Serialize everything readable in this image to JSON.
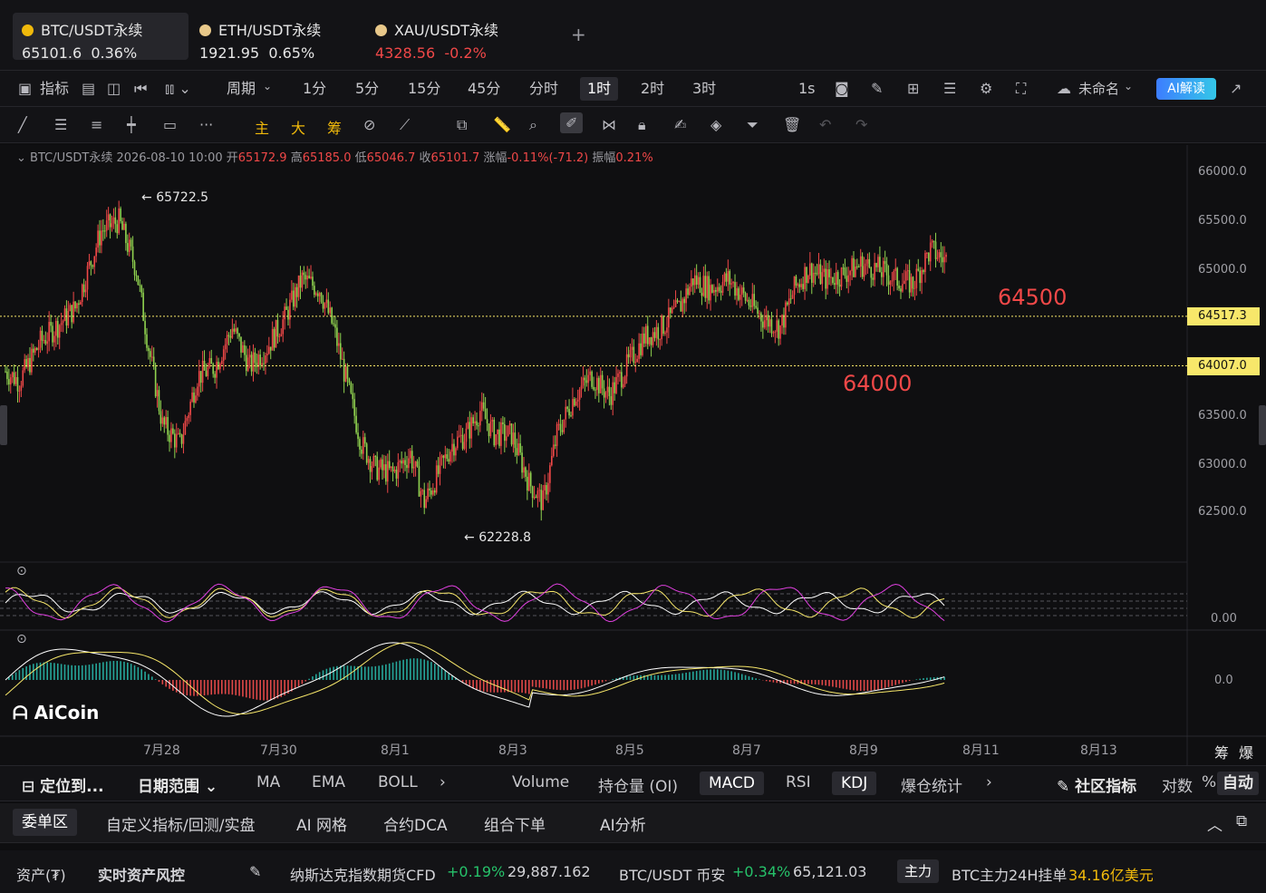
{
  "tabs": [
    {
      "name": "BTC/USDT永续",
      "price": "65101.6",
      "change": "0.36%",
      "dir": "up"
    },
    {
      "name": "ETH/USDT永续",
      "price": "1921.95",
      "change": "0.65%",
      "dir": "up"
    },
    {
      "name": "XAU/USDT永续",
      "price": "4328.56",
      "change": "-0.2%",
      "dir": "down"
    }
  ],
  "toolbar": {
    "indicator": "指标",
    "period": "周期",
    "intervals": [
      "1分",
      "5分",
      "15分",
      "45分",
      "分时",
      "1时",
      "2时",
      "3时"
    ],
    "selected_interval": "1时",
    "second": "1s",
    "layout_name": "未命名",
    "ai_button": "AI解读"
  },
  "draw_tools": {
    "main": "主",
    "big": "大",
    "chip": "筹"
  },
  "ohlc": {
    "symbol": "BTC/USDT永续",
    "datetime": "2026-08-10 10:00",
    "open_label": "开",
    "open": "65172.9",
    "high_label": "高",
    "high": "65185.0",
    "low_label": "低",
    "low": "65046.7",
    "close_label": "收",
    "close": "65101.7",
    "change_label": "涨幅",
    "change": "-0.11%(-71.2)",
    "amp_label": "振幅",
    "amp": "0.21%"
  },
  "chart_data": {
    "type": "candlestick",
    "y_ticks": [
      "66000.0",
      "65500.0",
      "65000.0",
      "63500.0",
      "63000.0",
      "62500.0"
    ],
    "ylim": [
      62000,
      66200
    ],
    "x_ticks": [
      "7月28",
      "7月30",
      "8月1",
      "8月3",
      "8月5",
      "8月7",
      "8月9",
      "8月11",
      "8月13"
    ],
    "high_marker": "65722.5",
    "low_marker": "62228.8",
    "horizontal_lines": [
      {
        "value": 64517.3,
        "label": "64517.3",
        "annotation": "64500"
      },
      {
        "value": 64007.0,
        "label": "64007.0",
        "annotation": "64000"
      }
    ],
    "kdj_axis": "0.00",
    "macd_axis": "0.0",
    "colors": {
      "up": "#f04848",
      "down": "#8fd14f",
      "line": "#f7e76a"
    }
  },
  "logo": "AiCoin",
  "chart_corner": [
    "筹",
    "爆"
  ],
  "indicator_bar": {
    "locate": "定位到...",
    "date_range": "日期范围",
    "main_inds": [
      "MA",
      "EMA",
      "BOLL"
    ],
    "sub_inds": [
      "Volume",
      "持仓量 (OI)",
      "MACD",
      "RSI",
      "KDJ",
      "爆仓统计"
    ],
    "selected": [
      "MACD",
      "KDJ"
    ],
    "community": "社区指标",
    "log": "对数",
    "percent": "%",
    "auto": "自动"
  },
  "panel_tabs": [
    "委单区",
    "自定义指标/回测/实盘",
    "AI 网格",
    "合约DCA",
    "组合下单",
    "AI分析"
  ],
  "status": {
    "assets": "资产(₮)",
    "risk": "实时资产风控",
    "nasdaq_name": "纳斯达克指数期货CFD",
    "nasdaq_change": "+0.19%",
    "nasdaq_price": "29,887.162",
    "btc_name": "BTC/USDT 币安",
    "btc_change": "+0.34%",
    "btc_price": "65,121.03",
    "zhuli": "主力",
    "btc_orders_label": "BTC主力24H挂单",
    "btc_orders_value": "34.16亿美元"
  }
}
